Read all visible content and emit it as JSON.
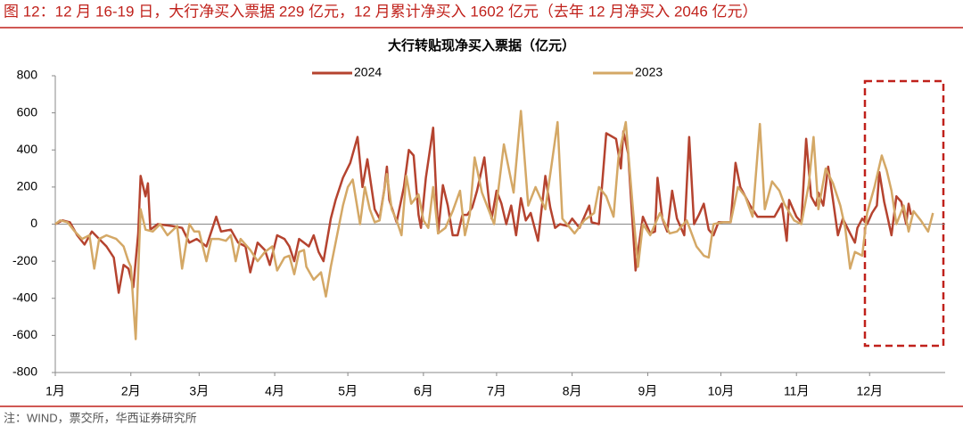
{
  "header": {
    "title": "图 12：12 月 16-19 日，大行净买入票据 229 亿元，12 月累计净买入 1602 亿元（去年 12 月净买入 2046 亿元）"
  },
  "source": "注：WIND，票交所，华西证券研究所",
  "chart_data": {
    "type": "line",
    "title": "大行转贴现净买入票据（亿元）",
    "xlim": [
      0,
      365
    ],
    "xticks": [
      {
        "value": 0,
        "label": "1月"
      },
      {
        "value": 31,
        "label": "2月"
      },
      {
        "value": 59,
        "label": "3月"
      },
      {
        "value": 90,
        "label": "4月"
      },
      {
        "value": 120,
        "label": "5月"
      },
      {
        "value": 151,
        "label": "6月"
      },
      {
        "value": 181,
        "label": "7月"
      },
      {
        "value": 212,
        "label": "8月"
      },
      {
        "value": 243,
        "label": "9月"
      },
      {
        "value": 273,
        "label": "10月"
      },
      {
        "value": 304,
        "label": "11月"
      },
      {
        "value": 334,
        "label": "12月"
      }
    ],
    "ylim": [
      -800,
      800
    ],
    "yticks": [
      -800,
      -600,
      -400,
      -200,
      0,
      200,
      400,
      600,
      800
    ],
    "series": [
      {
        "name": "2024",
        "color": "#b5432f",
        "x": [
          0,
          3,
          6,
          9,
          12,
          15,
          18,
          21,
          24,
          26,
          28,
          30,
          32,
          34,
          35,
          37,
          38,
          39,
          42,
          48,
          52,
          55,
          58,
          62,
          64,
          66,
          68,
          72,
          75,
          78,
          80,
          83,
          86,
          88,
          91,
          94,
          96,
          98,
          100,
          102,
          104,
          106,
          108,
          110,
          113,
          115,
          118,
          121,
          124,
          126,
          128,
          131,
          133,
          135,
          136,
          137,
          140,
          143,
          145,
          147,
          149,
          150,
          152,
          155,
          157,
          159,
          161,
          163,
          165,
          167,
          169,
          171,
          173,
          176,
          178,
          179,
          181,
          183,
          185,
          187,
          189,
          191,
          193,
          195,
          198,
          201,
          203,
          205,
          207,
          210,
          212,
          215,
          219,
          220,
          223,
          226,
          230,
          232,
          233,
          235,
          238,
          239,
          241,
          244,
          246,
          247,
          249,
          251,
          253,
          255,
          258,
          260,
          262,
          264,
          266,
          268,
          270,
          272,
          277,
          279,
          281,
          285,
          288,
          292,
          295,
          298,
          300,
          301,
          304,
          306,
          308,
          310,
          312,
          313,
          315,
          317,
          319,
          321,
          323,
          326,
          328,
          329,
          331,
          333,
          335,
          337,
          338,
          340,
          341,
          343,
          345,
          347,
          349,
          350,
          351
        ],
        "values": [
          0,
          20,
          10,
          -60,
          -110,
          -40,
          -80,
          -120,
          -180,
          -370,
          -220,
          -240,
          -340,
          -50,
          260,
          150,
          220,
          -30,
          0,
          -10,
          -20,
          -100,
          -80,
          -120,
          -40,
          40,
          -40,
          -30,
          -100,
          -120,
          -260,
          -100,
          -140,
          -220,
          -60,
          -80,
          -120,
          -200,
          -80,
          -100,
          -120,
          -60,
          -150,
          -200,
          30,
          130,
          250,
          330,
          470,
          200,
          350,
          80,
          30,
          190,
          310,
          130,
          10,
          200,
          400,
          370,
          50,
          -20,
          250,
          520,
          -50,
          210,
          100,
          -60,
          -60,
          50,
          50,
          90,
          180,
          360,
          110,
          30,
          180,
          110,
          0,
          100,
          -60,
          140,
          20,
          60,
          -90,
          260,
          90,
          -20,
          0,
          -10,
          30,
          -20,
          100,
          10,
          0,
          490,
          460,
          300,
          500,
          380,
          -250,
          -150,
          40,
          -50,
          -40,
          250,
          30,
          -40,
          180,
          30,
          -60,
          470,
          0,
          50,
          110,
          -30,
          -60,
          10,
          10,
          330,
          200,
          100,
          40,
          40,
          40,
          110,
          -90,
          130,
          40,
          10,
          460,
          150,
          100,
          170,
          100,
          310,
          130,
          -60,
          30,
          -50,
          -100,
          -20,
          30,
          0,
          60,
          100,
          280,
          120,
          60,
          -60,
          150,
          120,
          0,
          110,
          50
        ]
      },
      {
        "name": "2023",
        "color": "#d4a866",
        "x": [
          0,
          2,
          5,
          8,
          11,
          14,
          16,
          18,
          21,
          25,
          28,
          30,
          31,
          33,
          35,
          37,
          40,
          43,
          46,
          50,
          52,
          55,
          57,
          59,
          62,
          64,
          67,
          70,
          72,
          74,
          76,
          80,
          83,
          86,
          89,
          91,
          94,
          96,
          98,
          100,
          102,
          103,
          106,
          109,
          111,
          113,
          115,
          118,
          120,
          122,
          125,
          127,
          129,
          131,
          133,
          136,
          138,
          140,
          142,
          144,
          146,
          149,
          151,
          153,
          155,
          157,
          160,
          163,
          166,
          168,
          170,
          172,
          175,
          180,
          184,
          188,
          191,
          194,
          197,
          201,
          206,
          208,
          213,
          217,
          221,
          223,
          226,
          229,
          231,
          234,
          237,
          239,
          241,
          244,
          248,
          252,
          255,
          259,
          263,
          266,
          268,
          270,
          274,
          277,
          280,
          283,
          286,
          289,
          291,
          294,
          297,
          299,
          303,
          306,
          309,
          311,
          313,
          316,
          319,
          322,
          324,
          326,
          328,
          331,
          333,
          336,
          339,
          341,
          343,
          345,
          348,
          350,
          352,
          355,
          358,
          360
        ],
        "values": [
          0,
          20,
          10,
          -40,
          -80,
          -60,
          -240,
          -80,
          -60,
          -80,
          -120,
          -200,
          -230,
          -620,
          80,
          -30,
          -40,
          0,
          -60,
          -10,
          -240,
          0,
          -40,
          -40,
          -200,
          -80,
          -80,
          -90,
          -60,
          -200,
          -80,
          -140,
          -200,
          -150,
          -120,
          -250,
          -180,
          -170,
          -270,
          -150,
          -140,
          -230,
          -300,
          -260,
          -390,
          -230,
          -100,
          100,
          200,
          240,
          0,
          200,
          80,
          10,
          20,
          270,
          80,
          20,
          -60,
          260,
          110,
          160,
          20,
          -20,
          200,
          -50,
          -20,
          70,
          180,
          -60,
          50,
          360,
          170,
          0,
          430,
          170,
          610,
          100,
          200,
          80,
          550,
          30,
          -50,
          20,
          60,
          200,
          150,
          40,
          360,
          550,
          70,
          -230,
          0,
          -60,
          60,
          -50,
          -40,
          20,
          -120,
          -170,
          -180,
          0,
          10,
          10,
          200,
          150,
          40,
          540,
          80,
          230,
          180,
          110,
          20,
          0,
          210,
          470,
          80,
          300,
          220,
          100,
          -20,
          -240,
          -150,
          -170,
          60,
          200,
          370,
          290,
          180,
          0,
          100,
          -40,
          70,
          20,
          -40,
          60
        ]
      }
    ]
  }
}
